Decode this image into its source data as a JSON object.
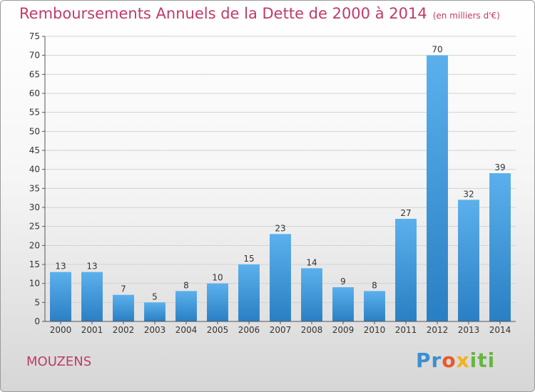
{
  "header": {
    "title": "Remboursements Annuels de la Dette de 2000 à 2014",
    "unit": "(en milliers d'€)"
  },
  "footer": {
    "place": "MOUZENS",
    "logo": "Proxiti"
  },
  "colors": {
    "bar_light": "#5bb0ec",
    "bar_dark": "#2a7fc3",
    "title": "#c03a6a"
  },
  "chart_data": {
    "type": "bar",
    "title": "Remboursements Annuels de la Dette de 2000 à 2014",
    "xlabel": "",
    "ylabel": "",
    "categories": [
      "2000",
      "2001",
      "2002",
      "2003",
      "2004",
      "2005",
      "2006",
      "2007",
      "2008",
      "2009",
      "2010",
      "2011",
      "2012",
      "2013",
      "2014"
    ],
    "values": [
      13,
      13,
      7,
      5,
      8,
      10,
      15,
      23,
      14,
      9,
      8,
      27,
      70,
      32,
      39
    ],
    "ylim": [
      0,
      75
    ],
    "yticks": [
      0,
      5,
      10,
      15,
      20,
      25,
      30,
      35,
      40,
      45,
      50,
      55,
      60,
      65,
      70,
      75
    ],
    "grid": true,
    "data_labels": true
  }
}
